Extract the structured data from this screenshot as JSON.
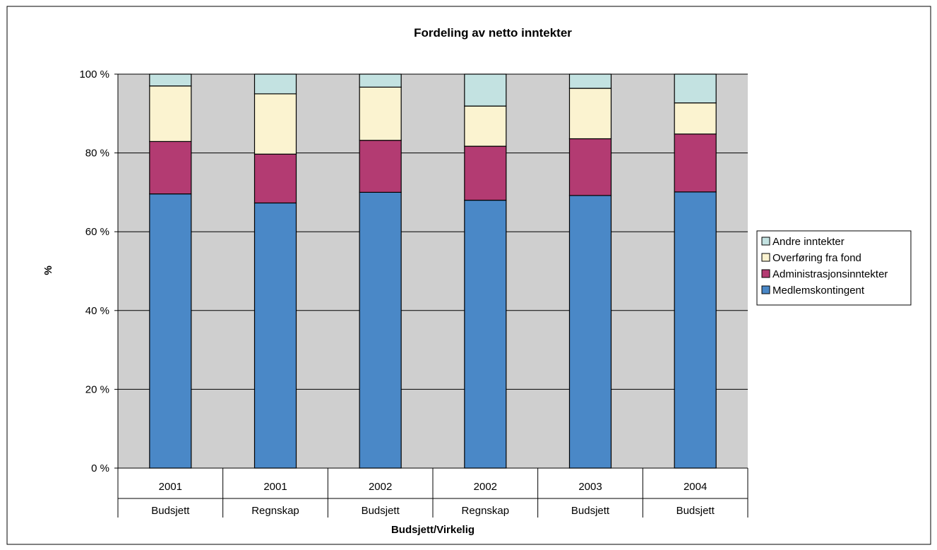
{
  "chart_data": {
    "type": "bar",
    "stacked": true,
    "percent_stacked": true,
    "title": "Fordeling av netto inntekter",
    "xlabel": "Budsjett/Virkelig",
    "ylabel": "%",
    "ylim": [
      0,
      100
    ],
    "y_ticks": [
      "0 %",
      "20 %",
      "40 %",
      "60 %",
      "80 %",
      "100 %"
    ],
    "y_tick_values": [
      0,
      20,
      40,
      60,
      80,
      100
    ],
    "categories": [
      {
        "year": "2001",
        "kind": "Budsjett"
      },
      {
        "year": "2001",
        "kind": "Regnskap"
      },
      {
        "year": "2002",
        "kind": "Budsjett"
      },
      {
        "year": "2002",
        "kind": "Regnskap"
      },
      {
        "year": "2003",
        "kind": "Budsjett"
      },
      {
        "year": "2004",
        "kind": "Budsjett"
      }
    ],
    "series": [
      {
        "name": "Medlemskontingent",
        "color": "#4a88c7",
        "values": [
          69.6,
          67.3,
          70.0,
          68.0,
          69.2,
          70.1
        ]
      },
      {
        "name": "Administrasjonsinntekter",
        "color": "#b33b72",
        "values": [
          13.3,
          12.4,
          13.2,
          13.7,
          14.4,
          14.7
        ]
      },
      {
        "name": "Overføring fra fond",
        "color": "#fbf3d0",
        "values": [
          14.1,
          15.3,
          13.5,
          10.2,
          12.8,
          7.9
        ]
      },
      {
        "name": "Andre inntekter",
        "color": "#c3e2e1",
        "values": [
          3.0,
          5.0,
          3.3,
          8.1,
          3.6,
          7.3
        ]
      }
    ],
    "legend_order": [
      "Andre inntekter",
      "Overføring fra fond",
      "Administrasjonsinntekter",
      "Medlemskontingent"
    ],
    "legend_position": "right",
    "grid": true,
    "plot_background": "#cfcfcf"
  }
}
